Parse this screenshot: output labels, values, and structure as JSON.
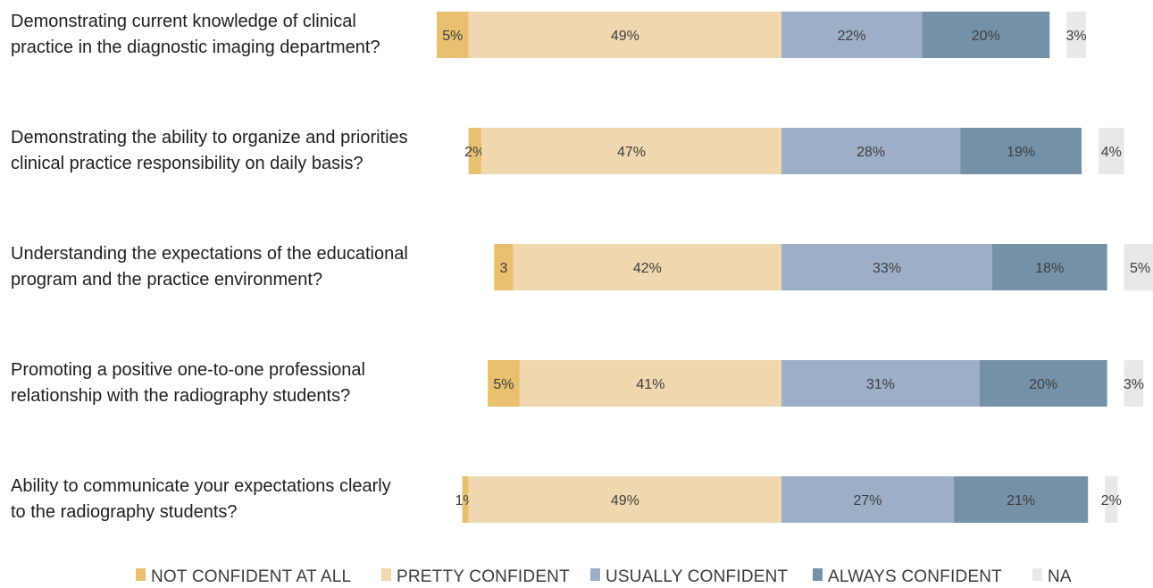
{
  "chart_data": {
    "type": "bar",
    "orientation": "horizontal",
    "stacked": true,
    "diverging": true,
    "grid": false,
    "legend_position": "bottom",
    "categories": [
      [
        "Demonstrating current knowledge of clinical",
        "practice in the diagnostic imaging department?"
      ],
      [
        "Demonstrating the ability to organize and priorities",
        "clinical practice responsibility on daily basis?"
      ],
      [
        "Understanding the expectations of the educational",
        "program and the practice environment?"
      ],
      [
        "Promoting a positive one-to-one professional",
        "relationship with the radiography students?"
      ],
      [
        "Ability to communicate your expectations clearly",
        "to the radiography students?"
      ]
    ],
    "series": [
      {
        "name": "NOT CONFIDENT AT ALL",
        "color": "#e8c06f",
        "values": [
          5,
          2,
          3,
          5,
          1
        ],
        "labels": [
          "5%",
          "2%",
          "3",
          "5%",
          "1%"
        ]
      },
      {
        "name": "PRETTY CONFIDENT",
        "color": "#efd8b0",
        "values": [
          49,
          47,
          42,
          41,
          49
        ],
        "labels": [
          "49%",
          "47%",
          "42%",
          "41%",
          "49%"
        ]
      },
      {
        "name": "USUALLY CONFIDENT",
        "color": "#9dafc6",
        "values": [
          22,
          28,
          33,
          31,
          27
        ],
        "labels": [
          "22%",
          "28%",
          "33%",
          "31%",
          "27%"
        ]
      },
      {
        "name": "ALWAYS CONFIDENT",
        "color": "#7591a8",
        "values": [
          20,
          19,
          18,
          20,
          21
        ],
        "labels": [
          "20%",
          "19%",
          "18%",
          "20%",
          "21%"
        ]
      },
      {
        "name": "NA",
        "color": "#e8e8e8",
        "values": [
          3,
          4,
          5,
          3,
          2
        ],
        "labels": [
          "3%",
          "4%",
          "5%",
          "3%",
          "2%"
        ]
      }
    ]
  }
}
